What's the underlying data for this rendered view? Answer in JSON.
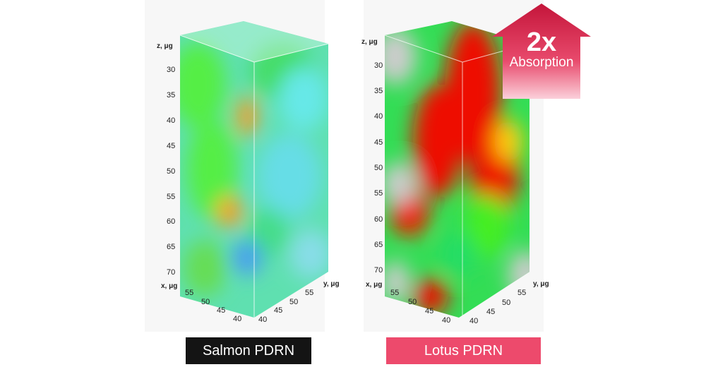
{
  "panels": [
    {
      "label": "Salmon PDRN",
      "z_axis_title": "z, μg",
      "x_axis_title": "x, μg",
      "y_axis_title": "y, μg",
      "z_ticks": [
        "30",
        "35",
        "40",
        "45",
        "50",
        "55",
        "60",
        "65",
        "70"
      ],
      "x_ticks": [
        "55",
        "50",
        "45",
        "40"
      ],
      "y_ticks": [
        "55",
        "50",
        "45",
        "40"
      ]
    },
    {
      "label": "Lotus PDRN",
      "z_axis_title": "z, μg",
      "x_axis_title": "x, μg",
      "y_axis_title": "y, μg",
      "z_ticks": [
        "30",
        "35",
        "40",
        "45",
        "50",
        "55",
        "60",
        "65",
        "70"
      ],
      "x_ticks": [
        "55",
        "50",
        "45",
        "40"
      ],
      "y_ticks": [
        "55",
        "50",
        "45",
        "40"
      ]
    }
  ],
  "badge": {
    "value": "2x",
    "text": "Absorption"
  },
  "colors": {
    "salmon_label_bg": "#141414",
    "lotus_label_bg": "#ed4a6c",
    "badge_top": "#c4153a",
    "badge_bottom": "#f07892"
  }
}
